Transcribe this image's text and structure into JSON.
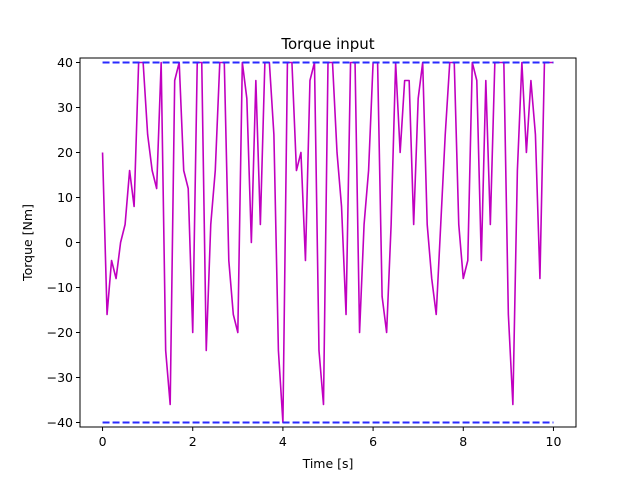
{
  "chart_data": {
    "type": "line",
    "title": "Torque input",
    "xlabel": "Time [s]",
    "ylabel": "Torque [Nm]",
    "xlim": [
      -0.5,
      10.5
    ],
    "ylim": [
      -41,
      41
    ],
    "xticks": [
      0,
      2,
      4,
      6,
      8,
      10
    ],
    "yticks": [
      -40,
      -30,
      -20,
      -10,
      0,
      10,
      20,
      30,
      40
    ],
    "grid": false,
    "legend": "none",
    "series": [
      {
        "color": "#c000c0",
        "x": [
          0.0,
          0.1,
          0.2,
          0.3,
          0.4,
          0.5,
          0.6,
          0.7,
          0.8,
          0.9,
          1.0,
          1.1,
          1.2,
          1.3,
          1.4,
          1.5,
          1.6,
          1.7,
          1.8,
          1.9,
          2.0,
          2.1,
          2.2,
          2.3,
          2.4,
          2.5,
          2.6,
          2.7,
          2.8,
          2.9,
          3.0,
          3.1,
          3.2,
          3.3,
          3.4,
          3.5,
          3.6,
          3.7,
          3.8,
          3.9,
          4.0,
          4.1,
          4.2,
          4.3,
          4.4,
          4.5,
          4.6,
          4.7,
          4.8,
          4.9,
          5.0,
          5.1,
          5.2,
          5.3,
          5.4,
          5.5,
          5.6,
          5.7,
          5.8,
          5.9,
          6.0,
          6.1,
          6.2,
          6.3,
          6.4,
          6.5,
          6.6,
          6.7,
          6.8,
          6.9,
          7.0,
          7.1,
          7.2,
          7.3,
          7.4,
          7.5,
          7.6,
          7.7,
          7.8,
          7.9,
          8.0,
          8.1,
          8.2,
          8.3,
          8.4,
          8.5,
          8.6,
          8.7,
          8.8,
          8.9,
          9.0,
          9.1,
          9.2,
          9.3,
          9.4,
          9.5,
          9.6,
          9.7,
          9.8,
          9.9,
          10.0
        ],
        "y": [
          20,
          -16,
          -4,
          -8,
          0,
          4,
          16,
          8,
          40,
          40,
          24,
          16,
          12,
          40,
          -24,
          -36,
          36,
          40,
          16,
          12,
          -20,
          40,
          40,
          -24,
          4,
          16,
          40,
          40,
          -4,
          -16,
          -20,
          40,
          32,
          0,
          36,
          4,
          40,
          40,
          24,
          -24,
          -40,
          40,
          40,
          16,
          20,
          -4,
          36,
          40,
          -24,
          -36,
          40,
          40,
          20,
          8,
          -16,
          40,
          40,
          -20,
          4,
          16,
          40,
          40,
          -12,
          -20,
          4,
          40,
          20,
          36,
          36,
          4,
          32,
          40,
          4,
          -8,
          -16,
          4,
          24,
          40,
          40,
          4,
          -8,
          -4,
          40,
          36,
          -4,
          36,
          4,
          40,
          40,
          40,
          -16,
          -36,
          16,
          40,
          20,
          36,
          24,
          -8,
          40,
          40,
          40
        ]
      },
      {
        "color": "#2a2aff",
        "style": "dashed",
        "x": [
          0,
          10
        ],
        "y": [
          40,
          40
        ]
      },
      {
        "color": "#2a2aff",
        "style": "dashed",
        "x": [
          0,
          10
        ],
        "y": [
          -40,
          -40
        ]
      }
    ]
  }
}
